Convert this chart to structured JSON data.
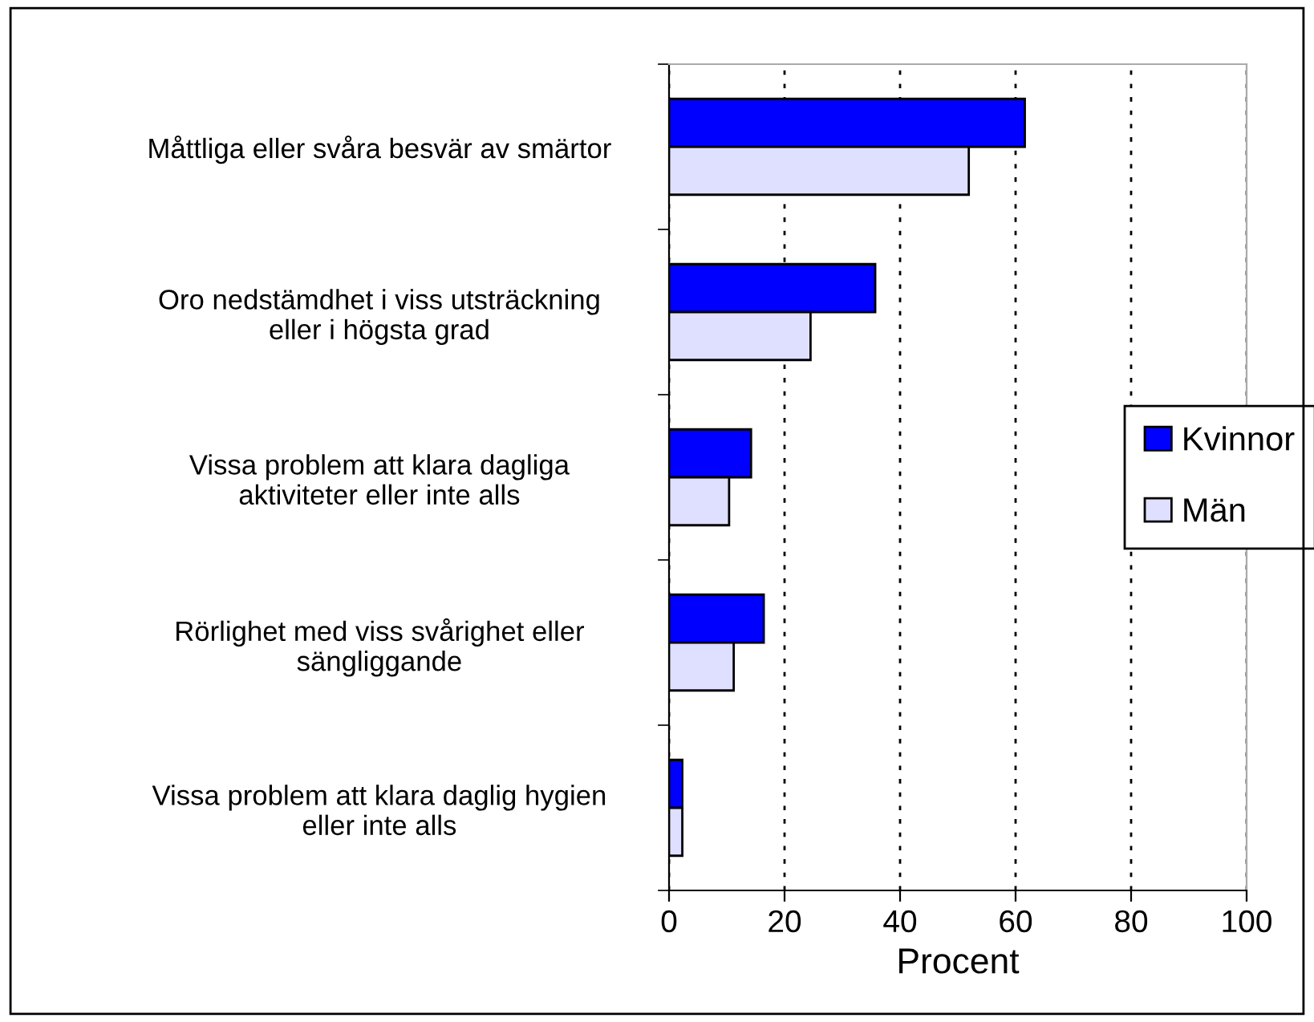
{
  "chart_data": {
    "type": "bar",
    "orientation": "horizontal",
    "xlabel": "Procent",
    "categories": [
      "Måttliga eller svåra besvär av smärtor",
      "Oro nedstämdhet i viss utsträckning\neller i högsta grad",
      "Vissa problem att klara dagliga\naktiviteter eller inte alls",
      "Rörlighet med viss svårighet eller\nsängliggande",
      "Vissa problem att klara daglig hygien\neller inte alls"
    ],
    "series": [
      {
        "name": "Kvinnor",
        "color": "#0000ff",
        "values": [
          61.6,
          35.7,
          14.2,
          16.4,
          2.3
        ]
      },
      {
        "name": "Män",
        "color": "#dfdfff",
        "values": [
          51.9,
          24.5,
          10.4,
          11.2,
          2.3
        ]
      }
    ],
    "xlim": [
      0,
      100
    ],
    "xticks": [
      0,
      20,
      40,
      60,
      80,
      100
    ],
    "grid": "x",
    "legend": "right"
  }
}
